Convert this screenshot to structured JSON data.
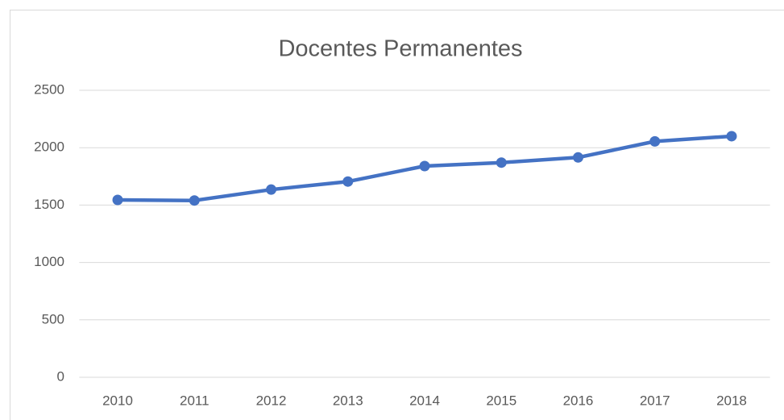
{
  "chart_data": {
    "type": "line",
    "title": "Docentes Permanentes",
    "categories": [
      "2010",
      "2011",
      "2012",
      "2013",
      "2014",
      "2015",
      "2016",
      "2017",
      "2018"
    ],
    "values": [
      1545,
      1540,
      1635,
      1705,
      1840,
      1870,
      1915,
      2055,
      2100
    ],
    "color": "#4472c4",
    "ylim": [
      0,
      2500
    ],
    "yticks": [
      0,
      500,
      1000,
      1500,
      2000,
      2500
    ],
    "grid": true
  }
}
